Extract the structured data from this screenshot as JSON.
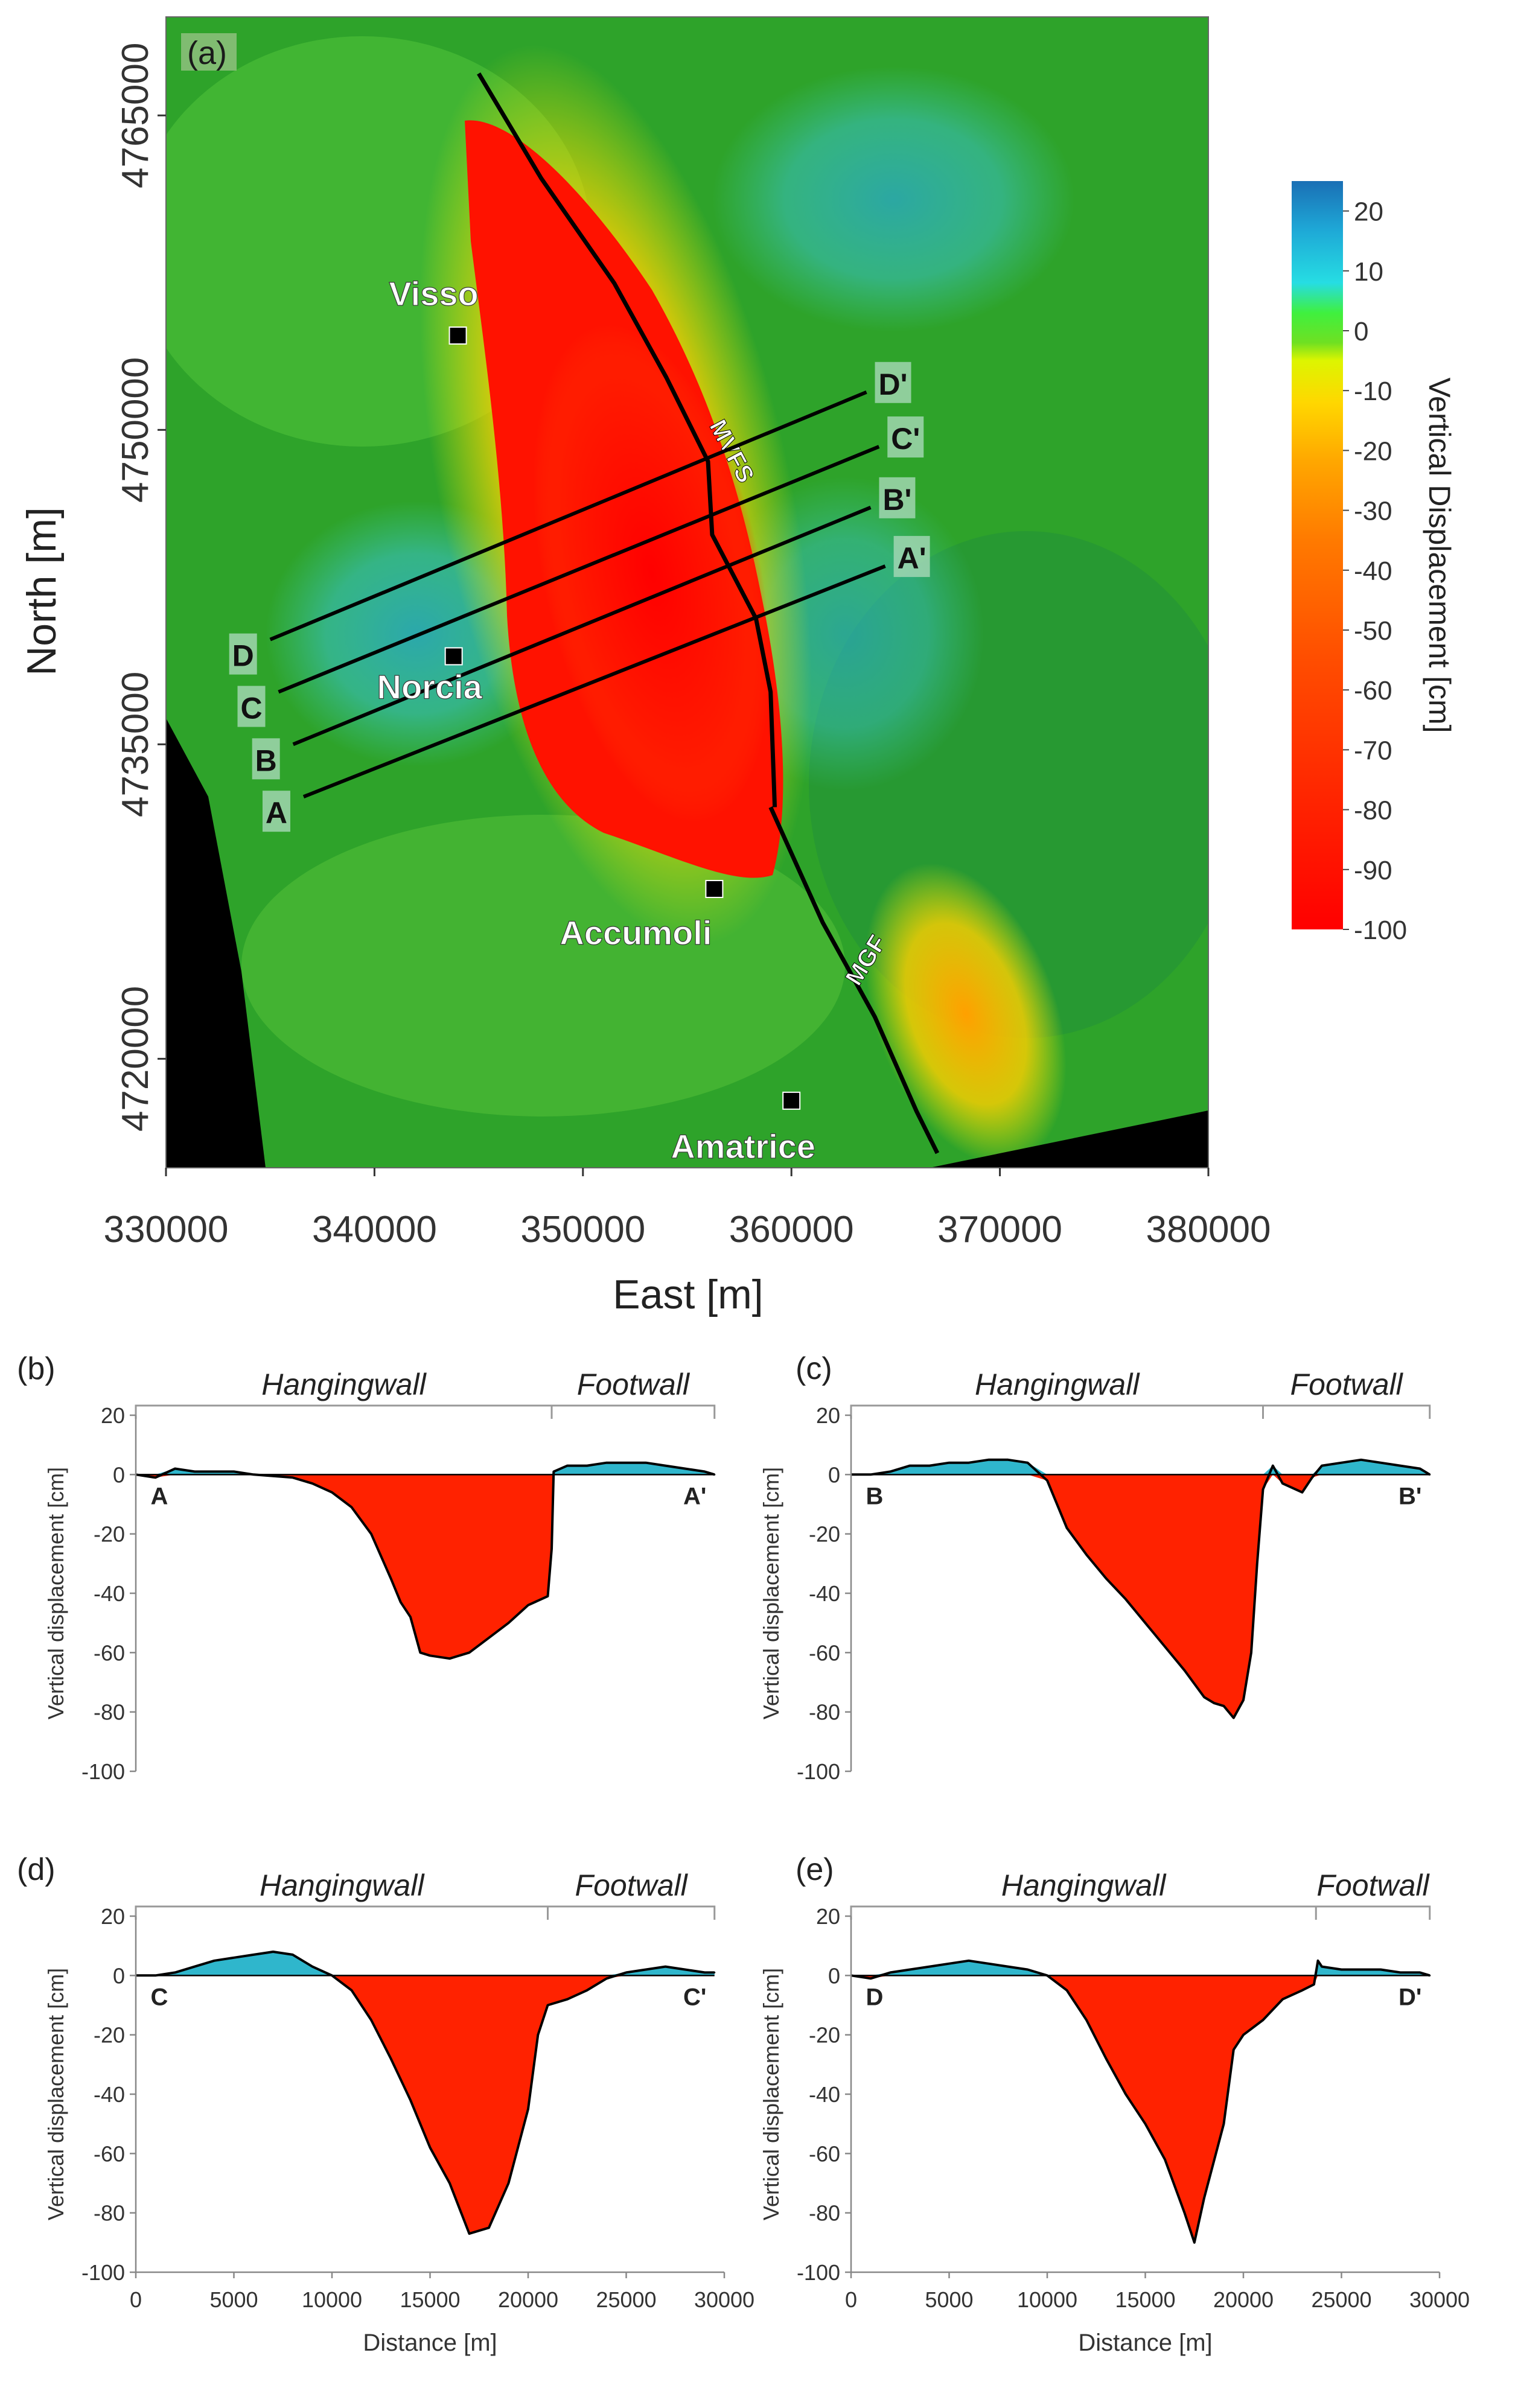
{
  "colors": {
    "subsidence": "#ff2200",
    "uplift": "#2fb6cc",
    "fault": "#000000",
    "map_background": "#000000"
  },
  "map": {
    "panel_label": "(a)",
    "xlabel": "East [m]",
    "ylabel": "North [m]",
    "x_ticks": [
      "330000",
      "340000",
      "350000",
      "360000",
      "370000",
      "380000"
    ],
    "x_tick_values": [
      330000,
      340000,
      350000,
      360000,
      370000,
      380000
    ],
    "y_ticks": [
      "4765000",
      "4750000",
      "4735000",
      "4720000"
    ],
    "y_tick_values": [
      4765000,
      4750000,
      4735000,
      4720000
    ],
    "xlim": [
      330000,
      380000
    ],
    "ylim": [
      4714800,
      4769700
    ],
    "towns": [
      {
        "name": "Visso",
        "e": 344000,
        "n": 4754500
      },
      {
        "name": "Norcia",
        "e": 343800,
        "n": 4739200
      },
      {
        "name": "Accumoli",
        "e": 356300,
        "n": 4728100
      },
      {
        "name": "Amatrice",
        "e": 360000,
        "n": 4718000
      }
    ],
    "faults": [
      {
        "name": "MVFS",
        "label_e": 356800,
        "label_n": 4748800,
        "trace": [
          [
            345000,
            4767000
          ],
          [
            348000,
            4762000
          ],
          [
            351500,
            4757000
          ],
          [
            354000,
            4752500
          ],
          [
            356000,
            4748500
          ],
          [
            356200,
            4745000
          ],
          [
            358300,
            4741000
          ],
          [
            359000,
            4737500
          ],
          [
            359200,
            4732000
          ]
        ]
      },
      {
        "name": "MGF",
        "label_e": 363900,
        "label_n": 4724500,
        "trace": [
          [
            359000,
            4732000
          ],
          [
            361500,
            4726500
          ],
          [
            364000,
            4722000
          ],
          [
            366000,
            4717500
          ],
          [
            367000,
            4715500
          ]
        ]
      }
    ],
    "profiles": [
      {
        "start": "A",
        "end": "A'",
        "e1": 336600,
        "n1": 4732500,
        "e2": 364500,
        "n2": 4743500
      },
      {
        "start": "B",
        "end": "B'",
        "e1": 336100,
        "n1": 4735000,
        "e2": 363800,
        "n2": 4746300
      },
      {
        "start": "C",
        "end": "C'",
        "e1": 335400,
        "n1": 4737500,
        "e2": 364200,
        "n2": 4749200
      },
      {
        "start": "D",
        "end": "D'",
        "e1": 335000,
        "n1": 4740000,
        "e2": 363600,
        "n2": 4751800
      }
    ]
  },
  "colorbar": {
    "title": "Vertical Displacement [cm]",
    "tick_labels": [
      "20",
      "10",
      "0",
      "-10",
      "-20",
      "-30",
      "-40",
      "-50",
      "-60",
      "-70",
      "-80",
      "-90",
      "-100"
    ],
    "tick_values": [
      20,
      10,
      0,
      -10,
      -20,
      -30,
      -40,
      -50,
      -60,
      -70,
      -80,
      -90,
      -100
    ],
    "vmin": -100,
    "vmax": 25,
    "stops": [
      {
        "v": 25,
        "c": "#1a6fb5"
      },
      {
        "v": 17,
        "c": "#1ea7d6"
      },
      {
        "v": 8,
        "c": "#26dde3"
      },
      {
        "v": 3,
        "c": "#3ff03f"
      },
      {
        "v": -2,
        "c": "#6fe022"
      },
      {
        "v": -5,
        "c": "#ddf500"
      },
      {
        "v": -12,
        "c": "#ffd700"
      },
      {
        "v": -22,
        "c": "#ffa600"
      },
      {
        "v": -35,
        "c": "#ff7a00"
      },
      {
        "v": -55,
        "c": "#ff4d00"
      },
      {
        "v": -75,
        "c": "#ff2a00"
      },
      {
        "v": -100,
        "c": "#ff0000"
      }
    ]
  },
  "chart_data": [
    {
      "type": "area",
      "panel": "(b)",
      "start_label": "A",
      "end_label": "A'",
      "hangingwall_label": "Hangingwall",
      "footwall_label": "Footwall",
      "fault_distance": 21200,
      "xlabel": "",
      "ylabel": "Vertical displacement [cm]",
      "xlim": [
        0,
        30000
      ],
      "ylim": [
        -100,
        20
      ],
      "y_ticks": [
        "20",
        "0",
        "-20",
        "-40",
        "-60",
        "-80",
        "-100"
      ],
      "y_tick_values": [
        20,
        0,
        -20,
        -40,
        -60,
        -80,
        -100
      ],
      "x_ticks": [],
      "x_tick_values": [],
      "x": [
        0,
        1000,
        2000,
        3000,
        4000,
        5000,
        6000,
        7000,
        8000,
        9000,
        10000,
        11000,
        12000,
        13000,
        13500,
        14000,
        14500,
        15000,
        16000,
        17000,
        18000,
        19000,
        20000,
        21000,
        21200,
        21300,
        22000,
        23000,
        24000,
        25000,
        26000,
        27000,
        28000,
        29000,
        29500
      ],
      "y": [
        0,
        -1,
        2,
        1,
        1,
        1,
        0,
        -0.5,
        -1,
        -3,
        -6,
        -11,
        -20,
        -35,
        -43,
        -48,
        -60,
        -61,
        -62,
        -60,
        -55,
        -50,
        -44,
        -41,
        -25,
        1,
        3,
        3,
        4,
        4,
        4,
        3,
        2,
        1,
        0
      ]
    },
    {
      "type": "area",
      "panel": "(c)",
      "start_label": "B",
      "end_label": "B'",
      "hangingwall_label": "Hangingwall",
      "footwall_label": "Footwall",
      "fault_distance": 21000,
      "xlabel": "",
      "ylabel": "Vertical displacement [cm]",
      "xlim": [
        0,
        30000
      ],
      "ylim": [
        -100,
        20
      ],
      "y_ticks": [
        "20",
        "0",
        "-20",
        "-40",
        "-60",
        "-80",
        "-100"
      ],
      "y_tick_values": [
        20,
        0,
        -20,
        -40,
        -60,
        -80,
        -100
      ],
      "x_ticks": [],
      "x_tick_values": [],
      "x": [
        0,
        1000,
        2000,
        3000,
        4000,
        5000,
        6000,
        7000,
        8000,
        9000,
        10000,
        11000,
        12000,
        13000,
        14000,
        15000,
        16000,
        17000,
        18000,
        18500,
        19000,
        19500,
        20000,
        20400,
        20700,
        21000,
        21500,
        22000,
        23000,
        23500,
        24000,
        25000,
        26000,
        27000,
        28000,
        29000,
        29500
      ],
      "y": [
        0,
        0,
        1,
        3,
        3,
        4,
        4,
        5,
        5,
        4,
        -2,
        -18,
        -27,
        -35,
        -42,
        -50,
        -58,
        -66,
        -75,
        -77,
        -78,
        -82,
        -76,
        -60,
        -30,
        -5,
        3,
        -3,
        -6,
        -1,
        3,
        4,
        5,
        4,
        3,
        2,
        0
      ]
    },
    {
      "type": "area",
      "panel": "(d)",
      "start_label": "C",
      "end_label": "C'",
      "hangingwall_label": "Hangingwall",
      "footwall_label": "Footwall",
      "fault_distance": 21000,
      "xlabel": "",
      "ylabel": "Vertical displacement [cm]",
      "xlim": [
        0,
        30000
      ],
      "ylim": [
        -100,
        20
      ],
      "y_ticks": [
        "20",
        "0",
        "-20",
        "-40",
        "-60",
        "-80",
        "-100"
      ],
      "y_tick_values": [
        20,
        0,
        -20,
        -40,
        -60,
        -80,
        -100
      ],
      "x_ticks": [
        "0",
        "5000",
        "10000",
        "15000",
        "20000",
        "25000",
        "30000"
      ],
      "x_tick_values": [
        0,
        5000,
        10000,
        15000,
        20000,
        25000,
        30000
      ],
      "x": [
        0,
        1000,
        2000,
        3000,
        4000,
        5000,
        6000,
        7000,
        8000,
        9000,
        10000,
        11000,
        12000,
        13000,
        14000,
        15000,
        16000,
        17000,
        18000,
        19000,
        20000,
        20500,
        21000,
        22000,
        23000,
        24000,
        25000,
        26000,
        27000,
        28000,
        29000,
        29500
      ],
      "y": [
        0,
        0,
        1,
        3,
        5,
        6,
        7,
        8,
        7,
        3,
        0,
        -5,
        -15,
        -28,
        -42,
        -58,
        -70,
        -87,
        -85,
        -70,
        -45,
        -20,
        -10,
        -8,
        -5,
        -1,
        1,
        2,
        3,
        2,
        1,
        1
      ]
    },
    {
      "type": "area",
      "panel": "(e)",
      "start_label": "D",
      "end_label": "D'",
      "hangingwall_label": "Hangingwall",
      "footwall_label": "Footwall",
      "fault_distance": 23700,
      "xlabel": "Distance [m]",
      "ylabel": "Vertical displacement [cm]",
      "xlim": [
        0,
        30000
      ],
      "ylim": [
        -100,
        20
      ],
      "y_ticks": [
        "20",
        "0",
        "-20",
        "-40",
        "-60",
        "-80",
        "-100"
      ],
      "y_tick_values": [
        20,
        0,
        -20,
        -40,
        -60,
        -80,
        -100
      ],
      "x_ticks": [
        "0",
        "5000",
        "10000",
        "15000",
        "20000",
        "25000",
        "30000"
      ],
      "x_tick_values": [
        0,
        5000,
        10000,
        15000,
        20000,
        25000,
        30000
      ],
      "x": [
        0,
        1000,
        2000,
        3000,
        4000,
        5000,
        6000,
        7000,
        8000,
        9000,
        10000,
        11000,
        12000,
        13000,
        14000,
        15000,
        16000,
        17000,
        17500,
        18000,
        19000,
        19500,
        20000,
        21000,
        22000,
        23000,
        23600,
        23800,
        24000,
        25000,
        26000,
        27000,
        28000,
        29000,
        29500
      ],
      "y": [
        0,
        -1,
        1,
        2,
        3,
        4,
        5,
        4,
        3,
        2,
        0,
        -5,
        -15,
        -28,
        -40,
        -50,
        -62,
        -80,
        -90,
        -75,
        -50,
        -25,
        -20,
        -15,
        -8,
        -5,
        -3,
        5,
        3,
        2,
        2,
        2,
        1,
        1,
        0
      ]
    }
  ],
  "x_axis_title": "Distance [m]"
}
